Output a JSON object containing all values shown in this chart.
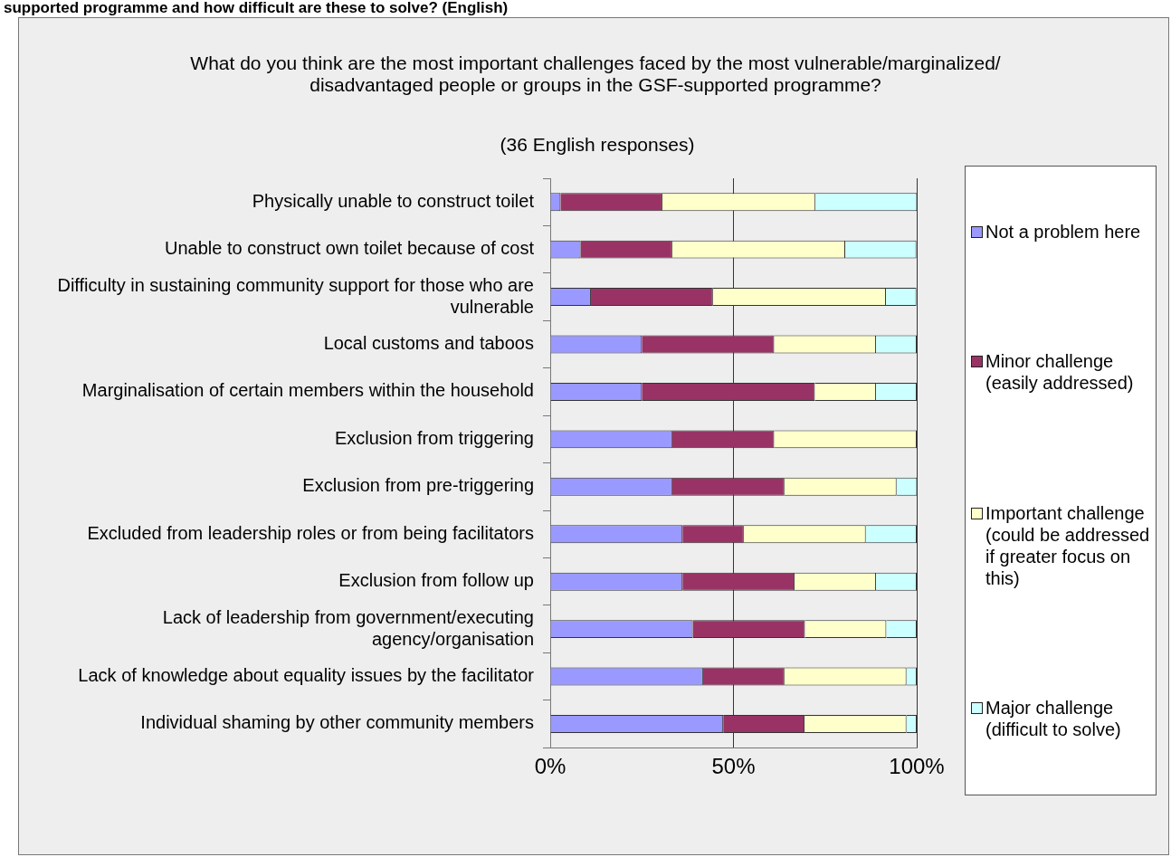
{
  "chart_data": {
    "type": "bar",
    "orientation": "horizontal",
    "stacked": true,
    "title": "What do you think are the most important challenges faced by the most vulnerable/marginalized/ disadvantaged people or groups in the GSF-supported programme?",
    "subtitle": "(36 English responses)",
    "annotations": [
      "supported programme and how difficult are these to solve? (English)"
    ],
    "categories": [
      "Physically unable to construct toilet",
      "Unable to construct own toilet because of cost",
      "Difficulty in sustaining community support for those who are vulnerable",
      "Local customs and taboos",
      "Marginalisation of certain members within the household",
      "Exclusion from triggering",
      "Exclusion from pre-triggering",
      "Excluded from leadership roles or from being facilitators",
      "Exclusion from follow up",
      "Lack of leadership from government/executing agency/organisation",
      "Lack of knowledge about equality issues by the facilitator",
      "Individual shaming by other community members"
    ],
    "series": [
      {
        "name": "Not a problem here",
        "color": "#9999ff",
        "values": [
          2.8,
          8.3,
          11.1,
          25,
          25,
          33.3,
          33.3,
          36.1,
          36.1,
          38.9,
          41.7,
          47.2
        ]
      },
      {
        "name": "Minor challenge (easily addressed)",
        "color": "#993366",
        "values": [
          27.8,
          25,
          33.3,
          36.1,
          47.2,
          27.8,
          30.6,
          16.7,
          30.6,
          30.6,
          22.2,
          22.2
        ]
      },
      {
        "name": "Important challenge (could be addressed if greater focus on this)",
        "color": "#ffffcc",
        "values": [
          41.7,
          47.2,
          47.2,
          27.8,
          16.7,
          38.9,
          30.6,
          33.3,
          22.2,
          22.2,
          33.3,
          27.8
        ]
      },
      {
        "name": "Major challenge (difficult to solve)",
        "color": "#ccffff",
        "values": [
          27.8,
          19.4,
          8.3,
          11.1,
          11.1,
          0,
          5.6,
          13.9,
          11.1,
          8.3,
          2.8,
          2.8
        ]
      }
    ],
    "xlim": [
      0,
      100
    ],
    "xticks": [
      {
        "value": 0,
        "label": "0%"
      },
      {
        "value": 50,
        "label": "50%"
      },
      {
        "value": 100,
        "label": "100%"
      }
    ],
    "grid": "x",
    "legend": "right"
  }
}
